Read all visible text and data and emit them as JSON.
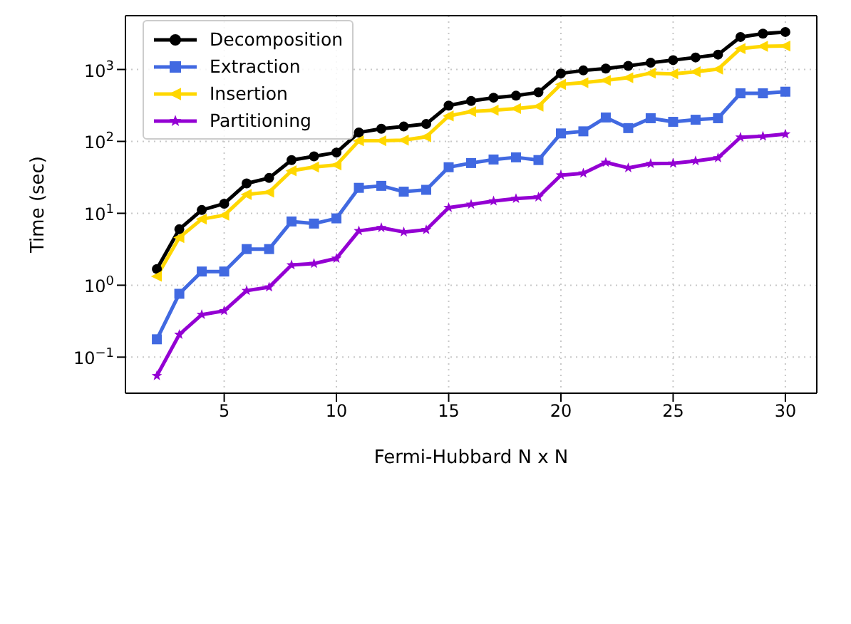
{
  "chart_data": {
    "type": "line",
    "xlabel": "Fermi-Hubbard N x N",
    "ylabel": "Time (sec)",
    "log": "y",
    "grid": true,
    "legend": "top left",
    "line_style": "solid",
    "x": [
      2,
      3,
      4,
      5,
      6,
      7,
      8,
      9,
      10,
      11,
      12,
      13,
      14,
      15,
      16,
      17,
      18,
      19,
      20,
      21,
      22,
      23,
      24,
      25,
      26,
      27,
      28,
      29,
      30
    ],
    "xlim": [
      0.6,
      31.4
    ],
    "xticks": [
      5,
      10,
      15,
      20,
      25,
      30
    ],
    "ylim": [
      0.0315,
      5600
    ],
    "yticks": [
      {
        "value": 0.1,
        "label": "10$^{−1}$"
      },
      {
        "value": 1,
        "label": "10$^{0}$"
      },
      {
        "value": 10,
        "label": "10$^{1}$"
      },
      {
        "value": 100,
        "label": "10$^{2}$"
      },
      {
        "value": 1000,
        "label": "10$^{3}$"
      }
    ],
    "series": [
      {
        "name": "Decomposition",
        "color": "#000000",
        "marker": "circle",
        "values": [
          1.68,
          6.0,
          11.1,
          13.6,
          26,
          31,
          55,
          62,
          70,
          133,
          150,
          161,
          175,
          315,
          365,
          405,
          432,
          481,
          880,
          970,
          1030,
          1120,
          1240,
          1350,
          1470,
          1610,
          2830,
          3150,
          3320
        ]
      },
      {
        "name": "Extraction",
        "color": "#4169e1",
        "marker": "square",
        "values": [
          0.177,
          0.76,
          1.55,
          1.55,
          3.18,
          3.18,
          7.7,
          7.2,
          8.5,
          22.6,
          24.1,
          20,
          21.2,
          43.7,
          50,
          56,
          60,
          55,
          129,
          138,
          215,
          153,
          210,
          187,
          200,
          210,
          466,
          466,
          491
        ]
      },
      {
        "name": "Insertion",
        "color": "#ffd700",
        "marker": "triangle",
        "values": [
          1.33,
          4.6,
          8.3,
          9.4,
          18.3,
          19.7,
          39,
          44,
          47,
          102,
          102,
          104,
          116,
          226,
          260,
          271,
          286,
          308,
          620,
          655,
          705,
          768,
          890,
          870,
          930,
          1010,
          1950,
          2100,
          2120
        ]
      },
      {
        "name": "Partitioning",
        "color": "#9400d3",
        "marker": "star",
        "values": [
          0.055,
          0.206,
          0.39,
          0.44,
          0.84,
          0.94,
          1.91,
          2.0,
          2.36,
          5.7,
          6.3,
          5.5,
          5.9,
          12.0,
          13.3,
          14.8,
          16.0,
          16.8,
          33.9,
          36.1,
          51,
          42.8,
          49,
          49.6,
          53.5,
          58.9,
          114,
          118,
          126
        ]
      }
    ]
  }
}
